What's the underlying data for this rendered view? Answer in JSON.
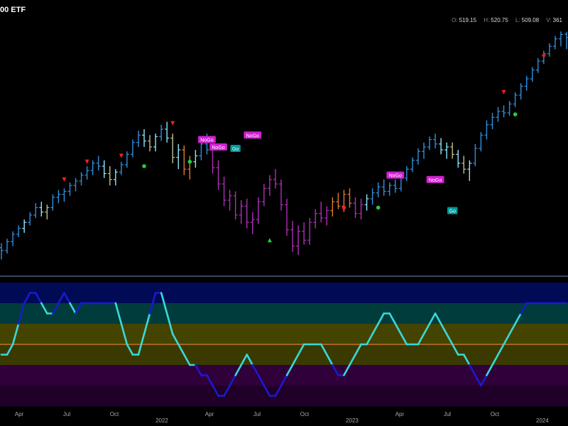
{
  "header": {
    "title": "00 ETF",
    "ohlc": [
      {
        "key": "O:",
        "value": "519.15"
      },
      {
        "key": "H:",
        "value": "520.75"
      },
      {
        "key": "L:",
        "value": "509.08"
      },
      {
        "key": "V:",
        "value": "361"
      }
    ]
  },
  "colors": {
    "strong_up": "#2f8fe0",
    "weak_up": "#8fe6ff",
    "weak_down": "#e07a2f",
    "strong_down": "#b02fb8",
    "neutral": "#bfbf8f",
    "osc_high": "#1a1ad0",
    "osc_low": "#3ad8d8",
    "zero_line": "#e07a2f",
    "band_top": "#000a55",
    "band_2": "#003c3c",
    "band_3": "#444400",
    "band_4": "#3a3a00",
    "band_5": "#30003a",
    "band_6": "#200028"
  },
  "chart_data": [
    {
      "type": "ohlc",
      "title": "",
      "ylim": [
        360,
        525
      ],
      "bars": [
        {
          "t": 0,
          "o": 375,
          "h": 378,
          "l": 367,
          "c": 373,
          "z": "strong_up"
        },
        {
          "t": 1,
          "o": 373,
          "h": 381,
          "l": 371,
          "c": 379,
          "z": "strong_up"
        },
        {
          "t": 2,
          "o": 379,
          "h": 386,
          "l": 376,
          "c": 384,
          "z": "strong_up"
        },
        {
          "t": 3,
          "o": 384,
          "h": 390,
          "l": 382,
          "c": 388,
          "z": "strong_up"
        },
        {
          "t": 4,
          "o": 388,
          "h": 394,
          "l": 385,
          "c": 392,
          "z": "weak_up"
        },
        {
          "t": 5,
          "o": 392,
          "h": 399,
          "l": 390,
          "c": 397,
          "z": "strong_up"
        },
        {
          "t": 6,
          "o": 397,
          "h": 405,
          "l": 395,
          "c": 402,
          "z": "strong_up"
        },
        {
          "t": 7,
          "o": 402,
          "h": 406,
          "l": 396,
          "c": 399,
          "z": "weak_up"
        },
        {
          "t": 8,
          "o": 399,
          "h": 404,
          "l": 394,
          "c": 402,
          "z": "neutral"
        },
        {
          "t": 9,
          "o": 402,
          "h": 411,
          "l": 400,
          "c": 409,
          "z": "strong_up"
        },
        {
          "t": 10,
          "o": 409,
          "h": 414,
          "l": 405,
          "c": 411,
          "z": "strong_up"
        },
        {
          "t": 11,
          "o": 411,
          "h": 415,
          "l": 406,
          "c": 413,
          "z": "strong_up"
        },
        {
          "t": 12,
          "o": 413,
          "h": 419,
          "l": 410,
          "c": 417,
          "z": "strong_up"
        },
        {
          "t": 13,
          "o": 417,
          "h": 422,
          "l": 413,
          "c": 420,
          "z": "strong_up"
        },
        {
          "t": 14,
          "o": 420,
          "h": 426,
          "l": 417,
          "c": 424,
          "z": "strong_up"
        },
        {
          "t": 15,
          "o": 424,
          "h": 430,
          "l": 421,
          "c": 427,
          "z": "strong_up"
        },
        {
          "t": 16,
          "o": 427,
          "h": 434,
          "l": 424,
          "c": 432,
          "z": "strong_up"
        },
        {
          "t": 17,
          "o": 432,
          "h": 437,
          "l": 427,
          "c": 430,
          "z": "strong_up"
        },
        {
          "t": 18,
          "o": 430,
          "h": 434,
          "l": 422,
          "c": 425,
          "z": "weak_up"
        },
        {
          "t": 19,
          "o": 425,
          "h": 430,
          "l": 417,
          "c": 421,
          "z": "neutral"
        },
        {
          "t": 20,
          "o": 421,
          "h": 428,
          "l": 417,
          "c": 426,
          "z": "weak_up"
        },
        {
          "t": 21,
          "o": 426,
          "h": 433,
          "l": 424,
          "c": 431,
          "z": "strong_up"
        },
        {
          "t": 22,
          "o": 431,
          "h": 440,
          "l": 429,
          "c": 438,
          "z": "strong_up"
        },
        {
          "t": 23,
          "o": 438,
          "h": 448,
          "l": 436,
          "c": 446,
          "z": "strong_up"
        },
        {
          "t": 24,
          "o": 446,
          "h": 454,
          "l": 443,
          "c": 451,
          "z": "strong_up"
        },
        {
          "t": 25,
          "o": 451,
          "h": 455,
          "l": 443,
          "c": 447,
          "z": "weak_up"
        },
        {
          "t": 26,
          "o": 447,
          "h": 451,
          "l": 440,
          "c": 443,
          "z": "neutral"
        },
        {
          "t": 27,
          "o": 443,
          "h": 452,
          "l": 440,
          "c": 450,
          "z": "weak_up"
        },
        {
          "t": 28,
          "o": 450,
          "h": 458,
          "l": 447,
          "c": 455,
          "z": "strong_up"
        },
        {
          "t": 29,
          "o": 455,
          "h": 460,
          "l": 446,
          "c": 449,
          "z": "weak_up"
        },
        {
          "t": 30,
          "o": 449,
          "h": 452,
          "l": 432,
          "c": 436,
          "z": "neutral"
        },
        {
          "t": 31,
          "o": 436,
          "h": 445,
          "l": 428,
          "c": 441,
          "z": "weak_up"
        },
        {
          "t": 32,
          "o": 441,
          "h": 444,
          "l": 424,
          "c": 428,
          "z": "weak_down"
        },
        {
          "t": 33,
          "o": 428,
          "h": 437,
          "l": 421,
          "c": 433,
          "z": "weak_down"
        },
        {
          "t": 34,
          "o": 433,
          "h": 441,
          "l": 429,
          "c": 437,
          "z": "weak_up"
        },
        {
          "t": 35,
          "o": 437,
          "h": 448,
          "l": 434,
          "c": 445,
          "z": "strong_up"
        },
        {
          "t": 36,
          "o": 445,
          "h": 452,
          "l": 438,
          "c": 441,
          "z": "strong_up"
        },
        {
          "t": 37,
          "o": 441,
          "h": 444,
          "l": 425,
          "c": 429,
          "z": "strong_down"
        },
        {
          "t": 38,
          "o": 429,
          "h": 434,
          "l": 414,
          "c": 418,
          "z": "strong_down"
        },
        {
          "t": 39,
          "o": 418,
          "h": 423,
          "l": 403,
          "c": 407,
          "z": "strong_down"
        },
        {
          "t": 40,
          "o": 407,
          "h": 414,
          "l": 400,
          "c": 410,
          "z": "strong_down"
        },
        {
          "t": 41,
          "o": 410,
          "h": 413,
          "l": 394,
          "c": 397,
          "z": "strong_down"
        },
        {
          "t": 42,
          "o": 397,
          "h": 407,
          "l": 391,
          "c": 403,
          "z": "strong_down"
        },
        {
          "t": 43,
          "o": 403,
          "h": 408,
          "l": 388,
          "c": 392,
          "z": "strong_down"
        },
        {
          "t": 44,
          "o": 392,
          "h": 399,
          "l": 384,
          "c": 394,
          "z": "strong_down"
        },
        {
          "t": 45,
          "o": 394,
          "h": 409,
          "l": 391,
          "c": 406,
          "z": "strong_down"
        },
        {
          "t": 46,
          "o": 406,
          "h": 418,
          "l": 403,
          "c": 415,
          "z": "strong_down"
        },
        {
          "t": 47,
          "o": 415,
          "h": 424,
          "l": 410,
          "c": 421,
          "z": "strong_down"
        },
        {
          "t": 48,
          "o": 421,
          "h": 428,
          "l": 415,
          "c": 418,
          "z": "strong_down"
        },
        {
          "t": 49,
          "o": 418,
          "h": 421,
          "l": 400,
          "c": 404,
          "z": "strong_down"
        },
        {
          "t": 50,
          "o": 404,
          "h": 408,
          "l": 383,
          "c": 387,
          "z": "strong_down"
        },
        {
          "t": 51,
          "o": 387,
          "h": 393,
          "l": 372,
          "c": 376,
          "z": "strong_down"
        },
        {
          "t": 52,
          "o": 376,
          "h": 390,
          "l": 370,
          "c": 386,
          "z": "strong_down"
        },
        {
          "t": 53,
          "o": 386,
          "h": 392,
          "l": 377,
          "c": 380,
          "z": "strong_down"
        },
        {
          "t": 54,
          "o": 380,
          "h": 395,
          "l": 377,
          "c": 392,
          "z": "strong_down"
        },
        {
          "t": 55,
          "o": 392,
          "h": 401,
          "l": 388,
          "c": 398,
          "z": "strong_down"
        },
        {
          "t": 56,
          "o": 398,
          "h": 406,
          "l": 392,
          "c": 395,
          "z": "strong_down"
        },
        {
          "t": 57,
          "o": 395,
          "h": 403,
          "l": 390,
          "c": 400,
          "z": "strong_down"
        },
        {
          "t": 58,
          "o": 400,
          "h": 409,
          "l": 396,
          "c": 406,
          "z": "weak_down"
        },
        {
          "t": 59,
          "o": 406,
          "h": 412,
          "l": 401,
          "c": 403,
          "z": "weak_down"
        },
        {
          "t": 60,
          "o": 403,
          "h": 414,
          "l": 399,
          "c": 411,
          "z": "weak_down"
        },
        {
          "t": 61,
          "o": 411,
          "h": 415,
          "l": 402,
          "c": 405,
          "z": "weak_down"
        },
        {
          "t": 62,
          "o": 405,
          "h": 409,
          "l": 395,
          "c": 398,
          "z": "strong_down"
        },
        {
          "t": 63,
          "o": 398,
          "h": 408,
          "l": 394,
          "c": 404,
          "z": "strong_down"
        },
        {
          "t": 64,
          "o": 404,
          "h": 411,
          "l": 400,
          "c": 408,
          "z": "weak_up"
        },
        {
          "t": 65,
          "o": 408,
          "h": 415,
          "l": 404,
          "c": 412,
          "z": "strong_up"
        },
        {
          "t": 66,
          "o": 412,
          "h": 419,
          "l": 409,
          "c": 416,
          "z": "strong_up"
        },
        {
          "t": 67,
          "o": 416,
          "h": 421,
          "l": 410,
          "c": 413,
          "z": "strong_up"
        },
        {
          "t": 68,
          "o": 413,
          "h": 419,
          "l": 410,
          "c": 417,
          "z": "strong_up"
        },
        {
          "t": 69,
          "o": 417,
          "h": 421,
          "l": 412,
          "c": 415,
          "z": "strong_up"
        },
        {
          "t": 70,
          "o": 415,
          "h": 424,
          "l": 413,
          "c": 422,
          "z": "strong_up"
        },
        {
          "t": 71,
          "o": 422,
          "h": 430,
          "l": 420,
          "c": 428,
          "z": "strong_up"
        },
        {
          "t": 72,
          "o": 428,
          "h": 436,
          "l": 426,
          "c": 434,
          "z": "strong_up"
        },
        {
          "t": 73,
          "o": 434,
          "h": 442,
          "l": 431,
          "c": 440,
          "z": "strong_up"
        },
        {
          "t": 74,
          "o": 440,
          "h": 446,
          "l": 435,
          "c": 443,
          "z": "strong_up"
        },
        {
          "t": 75,
          "o": 443,
          "h": 450,
          "l": 441,
          "c": 448,
          "z": "strong_up"
        },
        {
          "t": 76,
          "o": 448,
          "h": 452,
          "l": 442,
          "c": 445,
          "z": "strong_up"
        },
        {
          "t": 77,
          "o": 445,
          "h": 449,
          "l": 438,
          "c": 441,
          "z": "weak_up"
        },
        {
          "t": 78,
          "o": 441,
          "h": 446,
          "l": 435,
          "c": 443,
          "z": "weak_up"
        },
        {
          "t": 79,
          "o": 443,
          "h": 446,
          "l": 435,
          "c": 438,
          "z": "neutral"
        },
        {
          "t": 80,
          "o": 438,
          "h": 441,
          "l": 429,
          "c": 432,
          "z": "weak_up"
        },
        {
          "t": 81,
          "o": 432,
          "h": 437,
          "l": 425,
          "c": 428,
          "z": "neutral"
        },
        {
          "t": 82,
          "o": 428,
          "h": 434,
          "l": 420,
          "c": 432,
          "z": "weak_up"
        },
        {
          "t": 83,
          "o": 432,
          "h": 445,
          "l": 430,
          "c": 442,
          "z": "strong_up"
        },
        {
          "t": 84,
          "o": 442,
          "h": 453,
          "l": 440,
          "c": 451,
          "z": "strong_up"
        },
        {
          "t": 85,
          "o": 451,
          "h": 461,
          "l": 448,
          "c": 458,
          "z": "strong_up"
        },
        {
          "t": 86,
          "o": 458,
          "h": 466,
          "l": 455,
          "c": 463,
          "z": "strong_up"
        },
        {
          "t": 87,
          "o": 463,
          "h": 470,
          "l": 460,
          "c": 467,
          "z": "strong_up"
        },
        {
          "t": 88,
          "o": 467,
          "h": 471,
          "l": 463,
          "c": 466,
          "z": "strong_up"
        },
        {
          "t": 89,
          "o": 466,
          "h": 474,
          "l": 464,
          "c": 472,
          "z": "strong_up"
        },
        {
          "t": 90,
          "o": 472,
          "h": 480,
          "l": 470,
          "c": 478,
          "z": "strong_up"
        },
        {
          "t": 91,
          "o": 478,
          "h": 486,
          "l": 475,
          "c": 484,
          "z": "strong_up"
        },
        {
          "t": 92,
          "o": 484,
          "h": 491,
          "l": 481,
          "c": 489,
          "z": "strong_up"
        },
        {
          "t": 93,
          "o": 489,
          "h": 497,
          "l": 487,
          "c": 495,
          "z": "strong_up"
        },
        {
          "t": 94,
          "o": 495,
          "h": 503,
          "l": 493,
          "c": 501,
          "z": "strong_up"
        },
        {
          "t": 95,
          "o": 501,
          "h": 508,
          "l": 499,
          "c": 506,
          "z": "strong_up"
        },
        {
          "t": 96,
          "o": 506,
          "h": 513,
          "l": 504,
          "c": 511,
          "z": "strong_up"
        },
        {
          "t": 97,
          "o": 511,
          "h": 518,
          "l": 509,
          "c": 516,
          "z": "strong_up"
        },
        {
          "t": 98,
          "o": 516,
          "h": 521,
          "l": 511,
          "c": 519,
          "z": "strong_up"
        },
        {
          "t": 99,
          "o": 519.15,
          "h": 520.75,
          "l": 509.08,
          "c": 517,
          "z": "strong_up"
        }
      ],
      "markers": [
        {
          "t": 11,
          "kind": "tri-down",
          "color": "#ff2020",
          "price": 421
        },
        {
          "t": 15,
          "kind": "tri-down",
          "color": "#ff2020",
          "price": 433
        },
        {
          "t": 21,
          "kind": "tri-down",
          "color": "#ff2020",
          "price": 437
        },
        {
          "t": 25,
          "kind": "dot",
          "color": "#20d040",
          "price": 430
        },
        {
          "t": 30,
          "kind": "tri-down",
          "color": "#ff2020",
          "price": 459
        },
        {
          "t": 33,
          "kind": "dot",
          "color": "#20d040",
          "price": 433
        },
        {
          "t": 47,
          "kind": "tri-up",
          "color": "#20d040",
          "price": 380
        },
        {
          "t": 60,
          "kind": "dot",
          "color": "#ff2020",
          "price": 402
        },
        {
          "t": 66,
          "kind": "dot",
          "color": "#20d040",
          "price": 402
        },
        {
          "t": 88,
          "kind": "tri-down",
          "color": "#ff2020",
          "price": 480
        },
        {
          "t": 90,
          "kind": "dot",
          "color": "#20d040",
          "price": 465
        },
        {
          "t": 95,
          "kind": "tri-down",
          "color": "#ff2020",
          "price": 504
        }
      ],
      "labels": [
        {
          "t": 36,
          "text": "NoGo",
          "color": "#d020d0",
          "price": 448
        },
        {
          "t": 38,
          "text": "NoGo",
          "color": "#d020d0",
          "price": 443
        },
        {
          "t": 41,
          "text": "Go",
          "color": "#009999",
          "price": 442
        },
        {
          "t": 44,
          "text": "NoGo",
          "color": "#d020d0",
          "price": 451
        },
        {
          "t": 69,
          "text": "NoGo",
          "color": "#d020d0",
          "price": 424
        },
        {
          "t": 76,
          "text": "NoGo",
          "color": "#d020d0",
          "price": 421
        },
        {
          "t": 79,
          "text": "Go",
          "color": "#009999",
          "price": 400
        },
        {
          "t": 101,
          "text": "Go",
          "color": "#009999",
          "price": 423
        }
      ]
    },
    {
      "type": "line",
      "title": "",
      "ylim": [
        -6,
        6
      ],
      "x_ticks": [
        "Apr",
        "Jul",
        "Oct",
        "2022",
        "Apr",
        "Jul",
        "Oct",
        "2023",
        "Apr",
        "Jul",
        "Oct",
        "2024"
      ],
      "series": [
        {
          "values": [
            -1,
            -1,
            0,
            2,
            4,
            5,
            5,
            4,
            3,
            3,
            4,
            5,
            4,
            3,
            4,
            4,
            4,
            4,
            4,
            4,
            4,
            2,
            0,
            -1,
            -1,
            1,
            3,
            5,
            5,
            3,
            1,
            0,
            -1,
            -2,
            -2,
            -3,
            -3,
            -4,
            -5,
            -5,
            -4,
            -3,
            -2,
            -1,
            -2,
            -3,
            -4,
            -5,
            -5,
            -4,
            -3,
            -2,
            -1,
            0,
            0,
            0,
            0,
            -1,
            -2,
            -3,
            -3,
            -2,
            -1,
            0,
            0,
            1,
            2,
            3,
            3,
            2,
            1,
            0,
            0,
            0,
            1,
            2,
            3,
            2,
            1,
            0,
            -1,
            -1,
            -2,
            -3,
            -4,
            -3,
            -2,
            -1,
            0,
            1,
            2,
            3,
            4,
            4,
            4,
            4,
            4,
            4,
            4,
            4
          ]
        }
      ]
    }
  ]
}
